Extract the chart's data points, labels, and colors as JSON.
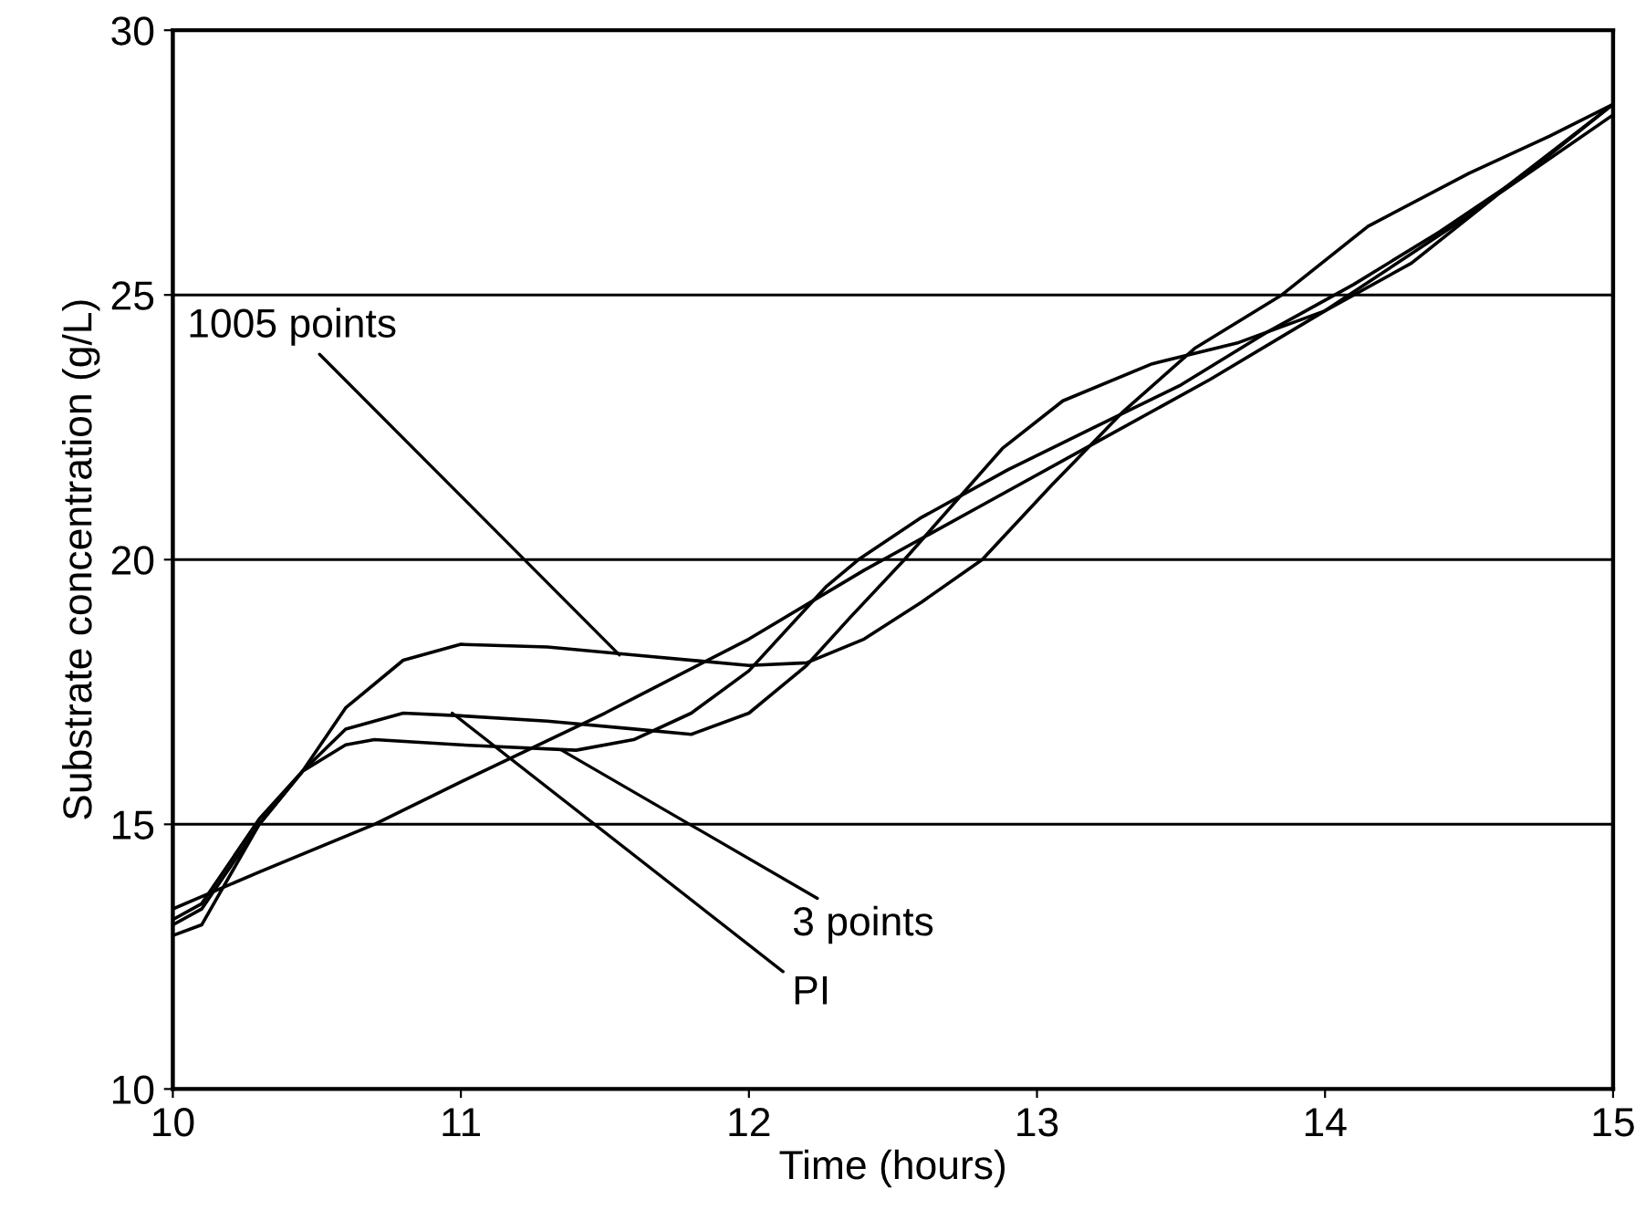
{
  "chart_data": {
    "type": "line",
    "xlabel": "Time (hours)",
    "ylabel": "Substrate concentration (g/L)",
    "xlim": [
      10,
      15
    ],
    "xticks": [
      10,
      11,
      12,
      13,
      14,
      15
    ],
    "ylim": [
      10,
      30
    ],
    "yticks": [
      10,
      15,
      20,
      25,
      30
    ],
    "grid": "y",
    "legend": false,
    "marker": "none",
    "line_style": "solid",
    "series": [
      {
        "color": "#000000",
        "x": [
          10,
          10.3,
          10.7,
          11,
          11.5,
          12,
          12.4,
          12.8,
          13.2,
          13.6,
          14,
          14.5,
          15
        ],
        "values": [
          13.4,
          14.1,
          15.0,
          15.8,
          17.1,
          18.5,
          19.8,
          21.0,
          22.2,
          23.4,
          24.7,
          26.5,
          28.6
        ]
      },
      {
        "color": "#000000",
        "x": [
          10,
          10.1,
          10.3,
          10.45,
          10.6,
          10.8,
          11.0,
          11.3,
          11.6,
          12.0,
          12.2,
          12.4,
          12.6,
          12.81,
          13.05,
          13.3,
          13.55,
          13.85,
          14.15,
          14.5,
          14.78,
          15
        ],
        "values": [
          12.9,
          13.1,
          15.0,
          16.0,
          17.2,
          18.1,
          18.4,
          18.35,
          18.2,
          18.0,
          18.05,
          18.5,
          19.2,
          20.0,
          21.4,
          22.8,
          24.0,
          25.0,
          26.3,
          27.3,
          28.0,
          28.6
        ]
      },
      {
        "color": "#000000",
        "x": [
          10,
          10.1,
          10.3,
          10.45,
          10.6,
          10.8,
          11.0,
          11.3,
          11.6,
          11.8,
          12.0,
          12.2,
          12.35,
          12.54,
          12.88,
          13.09,
          13.4,
          13.7,
          14.0,
          14.3,
          14.6,
          15
        ],
        "values": [
          13.1,
          13.4,
          15.0,
          16.0,
          16.8,
          17.1,
          17.05,
          16.95,
          16.8,
          16.7,
          17.1,
          18.0,
          18.9,
          20.0,
          22.1,
          23.0,
          23.7,
          24.1,
          24.7,
          25.6,
          26.9,
          28.4
        ]
      },
      {
        "color": "#000000",
        "x": [
          10,
          10.1,
          10.3,
          10.45,
          10.6,
          10.7,
          11.0,
          11.4,
          11.6,
          11.8,
          12.0,
          12.27,
          12.38,
          12.6,
          12.9,
          13.2,
          13.5,
          13.8,
          14.1,
          14.4,
          14.7,
          15
        ],
        "values": [
          13.2,
          13.5,
          15.1,
          16.0,
          16.5,
          16.6,
          16.5,
          16.4,
          16.6,
          17.1,
          17.9,
          19.5,
          20.0,
          20.8,
          21.7,
          22.5,
          23.3,
          24.3,
          25.2,
          26.2,
          27.3,
          28.6
        ]
      }
    ],
    "annotations": [
      {
        "text": "1005 points",
        "x": 11.55,
        "y": 18.2
      },
      {
        "text": "3 points",
        "x": 11.35,
        "y": 16.4
      },
      {
        "text": "PI",
        "x": 10.97,
        "y": 17.1
      }
    ]
  }
}
